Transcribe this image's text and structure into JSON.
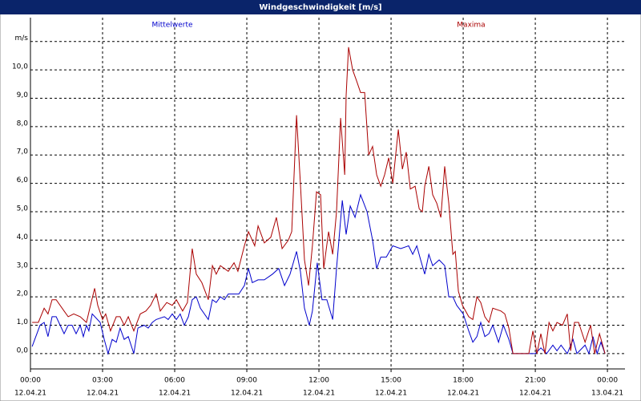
{
  "chart_data": {
    "type": "line",
    "title": "Windgeschwindigkeit [m/s]",
    "xlim": [
      0,
      24.73
    ],
    "ylim": [
      -0.54,
      11.84
    ],
    "xticks": [
      {
        "value": 0,
        "label": "00:00"
      },
      {
        "value": 3,
        "label": "03:00"
      },
      {
        "value": 6,
        "label": "06:00"
      },
      {
        "value": 9,
        "label": "09:00"
      },
      {
        "value": 12,
        "label": "12:00"
      },
      {
        "value": 15,
        "label": "15:00"
      },
      {
        "value": 18,
        "label": "18:00"
      },
      {
        "value": 21,
        "label": "21:00"
      },
      {
        "value": 24,
        "label": "00:00"
      }
    ],
    "xtick_dates": [
      "12.04.21",
      "12.04.21",
      "12.04.21",
      "12.04.21",
      "12.04.21",
      "12.04.21",
      "12.04.21",
      "12.04.21",
      "13.04.21"
    ],
    "yticks": [
      {
        "value": 0,
        "label": "0,0"
      },
      {
        "value": 1,
        "label": "1,0"
      },
      {
        "value": 2,
        "label": "2,0"
      },
      {
        "value": 3,
        "label": "3,0"
      },
      {
        "value": 4,
        "label": "4,0"
      },
      {
        "value": 5,
        "label": "5,0"
      },
      {
        "value": 6,
        "label": "6,0"
      },
      {
        "value": 7,
        "label": "7,0"
      },
      {
        "value": 8,
        "label": "8,0"
      },
      {
        "value": 9,
        "label": "9,0"
      },
      {
        "value": 10,
        "label": "10,0"
      },
      {
        "value": 11,
        "label": "m/s"
      }
    ],
    "grid": true,
    "series": [
      {
        "name": "Mittelwerte",
        "color": "#0000cc",
        "x": [
          0.07,
          0.4,
          0.57,
          0.73,
          0.9,
          1.07,
          1.4,
          1.57,
          1.73,
          1.9,
          2.07,
          2.2,
          2.33,
          2.43,
          2.57,
          2.9,
          3.07,
          3.23,
          3.4,
          3.57,
          3.73,
          3.9,
          4.07,
          4.3,
          4.47,
          4.73,
          4.9,
          5.07,
          5.23,
          5.57,
          5.73,
          5.9,
          6.07,
          6.23,
          6.4,
          6.57,
          6.73,
          6.9,
          7.07,
          7.4,
          7.57,
          7.73,
          7.9,
          8.07,
          8.23,
          8.67,
          8.9,
          9.07,
          9.23,
          9.47,
          9.73,
          10.07,
          10.33,
          10.57,
          10.8,
          11.07,
          11.23,
          11.4,
          11.6,
          11.73,
          11.93,
          12.13,
          12.33,
          12.57,
          12.73,
          12.97,
          13.13,
          13.3,
          13.5,
          13.73,
          14.0,
          14.23,
          14.4,
          14.57,
          14.8,
          15.07,
          15.4,
          15.73,
          15.9,
          16.07,
          16.23,
          16.4,
          16.57,
          16.73,
          17.0,
          17.23,
          17.4,
          17.57,
          17.73,
          18.0,
          18.23,
          18.4,
          18.57,
          18.73,
          18.9,
          19.07,
          19.23,
          19.47,
          19.67,
          19.9,
          20.07,
          21.0,
          21.23,
          21.47,
          21.73,
          21.9,
          22.07,
          22.33,
          22.57,
          22.73,
          23.07,
          23.23,
          23.4,
          23.57,
          23.73,
          23.9
        ],
        "values": [
          0.25,
          1.0,
          1.1,
          0.6,
          1.3,
          1.3,
          0.7,
          1.0,
          1.0,
          0.7,
          1.0,
          0.6,
          1.0,
          0.8,
          1.4,
          1.1,
          0.5,
          0.0,
          0.5,
          0.4,
          0.9,
          0.5,
          0.6,
          0.0,
          0.9,
          1.0,
          0.9,
          1.1,
          1.2,
          1.3,
          1.2,
          1.4,
          1.2,
          1.4,
          1.0,
          1.3,
          1.9,
          2.0,
          1.6,
          1.2,
          1.9,
          1.8,
          2.0,
          1.9,
          2.1,
          2.1,
          2.4,
          3.0,
          2.5,
          2.6,
          2.6,
          2.8,
          3.0,
          2.4,
          2.8,
          3.6,
          2.9,
          1.6,
          1.0,
          1.5,
          3.2,
          1.9,
          1.9,
          1.2,
          3.0,
          5.4,
          4.2,
          5.2,
          4.8,
          5.6,
          5.0,
          4.0,
          3.0,
          3.4,
          3.4,
          3.8,
          3.7,
          3.8,
          3.5,
          3.8,
          3.3,
          2.8,
          3.5,
          3.1,
          3.3,
          3.1,
          2.0,
          2.0,
          1.7,
          1.4,
          0.8,
          0.4,
          0.6,
          1.1,
          0.6,
          0.7,
          1.0,
          0.4,
          1.0,
          0.5,
          0.0,
          0.0,
          0.2,
          0.0,
          0.3,
          0.1,
          0.3,
          0.0,
          0.5,
          0.0,
          0.3,
          0.0,
          0.6,
          0.0,
          0.4,
          0.0
        ]
      },
      {
        "name": "Maxima",
        "color": "#aa0000",
        "x": [
          0.07,
          0.33,
          0.57,
          0.73,
          0.9,
          1.07,
          1.4,
          1.57,
          1.8,
          2.07,
          2.33,
          2.47,
          2.67,
          2.8,
          3.0,
          3.13,
          3.33,
          3.57,
          3.73,
          3.9,
          4.07,
          4.3,
          4.57,
          4.8,
          5.0,
          5.23,
          5.4,
          5.67,
          5.9,
          6.07,
          6.33,
          6.53,
          6.73,
          6.9,
          7.13,
          7.4,
          7.57,
          7.73,
          7.9,
          8.23,
          8.47,
          8.63,
          8.9,
          9.07,
          9.33,
          9.47,
          9.73,
          10.0,
          10.23,
          10.47,
          10.73,
          10.87,
          11.07,
          11.23,
          11.4,
          11.57,
          11.73,
          11.9,
          12.07,
          12.2,
          12.4,
          12.57,
          12.73,
          12.9,
          13.07,
          13.13,
          13.23,
          13.4,
          13.57,
          13.73,
          13.9,
          14.07,
          14.23,
          14.4,
          14.57,
          14.73,
          14.9,
          15.07,
          15.3,
          15.47,
          15.63,
          15.8,
          16.0,
          16.17,
          16.3,
          16.4,
          16.57,
          16.73,
          16.9,
          17.07,
          17.23,
          17.4,
          17.57,
          17.67,
          17.8,
          17.97,
          18.23,
          18.4,
          18.57,
          18.73,
          18.9,
          19.07,
          19.23,
          19.57,
          19.73,
          19.9,
          20.07,
          20.73,
          20.9,
          21.07,
          21.23,
          21.4,
          21.57,
          21.73,
          21.9,
          22.13,
          22.33,
          22.47,
          22.63,
          22.8,
          23.07,
          23.3,
          23.47,
          23.67,
          23.9
        ],
        "values": [
          1.1,
          1.1,
          1.6,
          1.4,
          1.9,
          1.9,
          1.5,
          1.3,
          1.4,
          1.3,
          1.1,
          1.6,
          2.3,
          1.7,
          1.2,
          1.4,
          0.8,
          1.3,
          1.3,
          1.0,
          1.3,
          0.8,
          1.4,
          1.5,
          1.7,
          2.1,
          1.5,
          1.8,
          1.7,
          1.9,
          1.5,
          1.8,
          3.7,
          2.8,
          2.5,
          1.9,
          3.1,
          2.8,
          3.1,
          2.9,
          3.2,
          2.9,
          3.8,
          4.3,
          3.8,
          4.5,
          3.9,
          4.1,
          4.8,
          3.7,
          4.0,
          4.3,
          8.4,
          6.0,
          3.3,
          2.4,
          3.8,
          5.7,
          5.6,
          3.0,
          4.3,
          3.5,
          5.0,
          8.3,
          6.3,
          9.1,
          10.8,
          10.0,
          9.6,
          9.2,
          9.2,
          7.0,
          7.3,
          6.3,
          5.9,
          6.3,
          6.9,
          6.0,
          7.9,
          6.5,
          7.1,
          5.8,
          5.9,
          5.1,
          5.0,
          5.9,
          6.6,
          5.6,
          5.3,
          4.8,
          6.6,
          5.3,
          3.5,
          3.6,
          2.2,
          1.7,
          1.3,
          1.2,
          2.0,
          1.8,
          1.3,
          1.1,
          1.6,
          1.5,
          1.4,
          0.9,
          0.0,
          0.0,
          0.8,
          0.0,
          0.7,
          0.0,
          1.1,
          0.8,
          1.1,
          1.0,
          1.4,
          0.1,
          1.1,
          1.1,
          0.4,
          1.0,
          0.0,
          0.7,
          0.0
        ]
      }
    ]
  }
}
